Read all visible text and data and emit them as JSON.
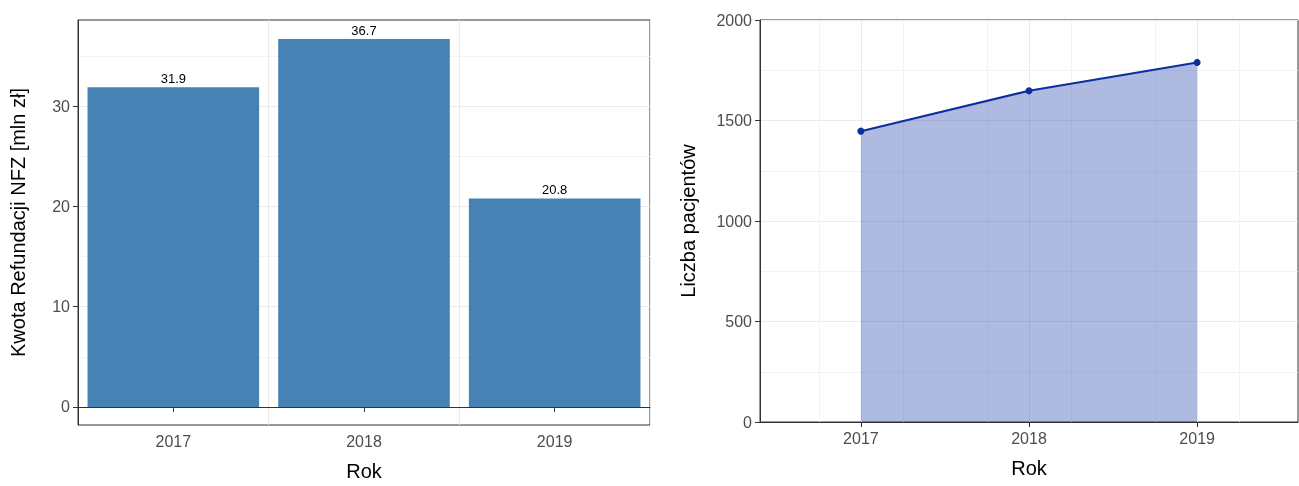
{
  "chart_data": [
    {
      "type": "bar",
      "xlabel": "Rok",
      "ylabel": "Kwota Refundacji NFZ [mln zł]",
      "categories": [
        "2017",
        "2018",
        "2019"
      ],
      "series": [
        {
          "color": "#4682b4",
          "values": [
            31.9,
            36.7,
            20.8
          ]
        }
      ],
      "ylim": [
        -1.8,
        38.6
      ],
      "yticks": [
        0,
        10,
        20,
        30
      ],
      "grid": true,
      "data_labels": true
    },
    {
      "type": "area",
      "xlabel": "Rok",
      "ylabel": "Liczba pacjentów",
      "x": [
        2017,
        2018,
        2019
      ],
      "series": [
        {
          "color": "#0a2fa0",
          "values": [
            1447,
            1648,
            1789
          ]
        }
      ],
      "marker": "circle",
      "xlim": [
        2016.4,
        2019.6
      ],
      "xticks": [
        2017,
        2018,
        2019
      ],
      "ylim": [
        0,
        2000
      ],
      "yticks": [
        0,
        500,
        1000,
        1500,
        2000
      ],
      "grid": true
    }
  ]
}
